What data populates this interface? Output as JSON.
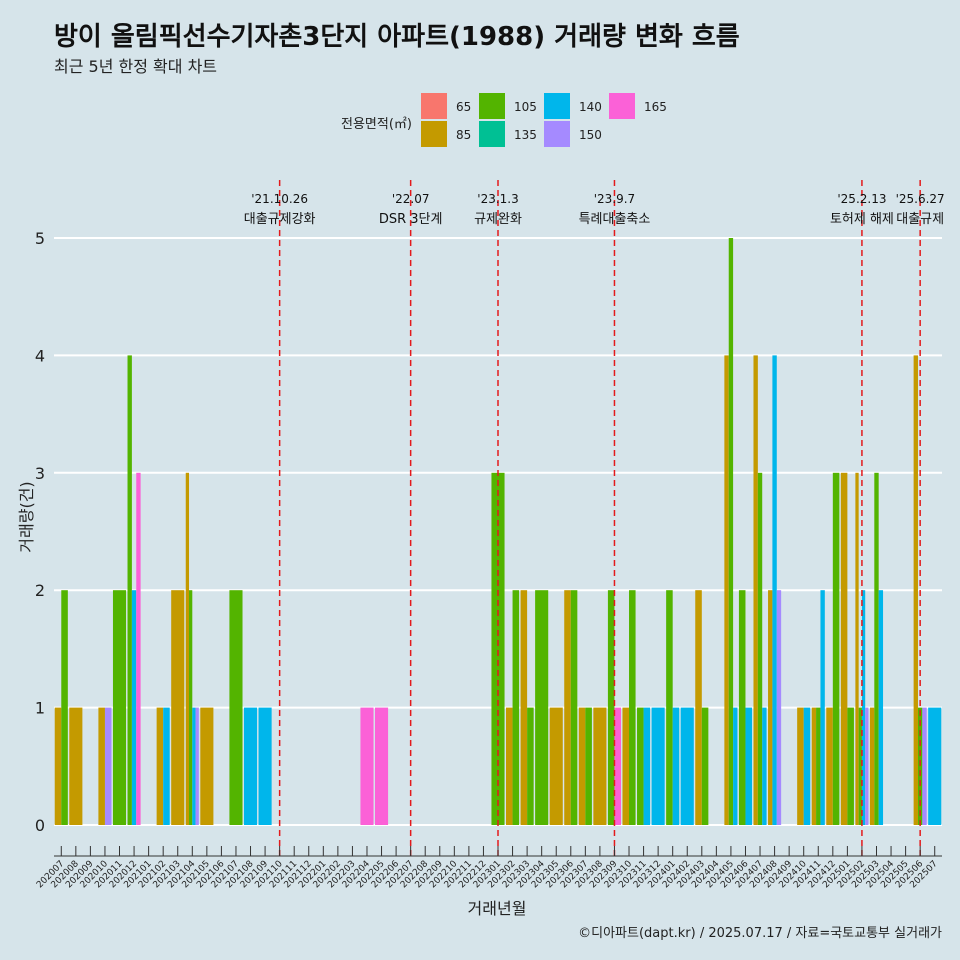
{
  "title": "방이 올림픽선수기자촌3단지 아파트(1988) 거래량 변화 흐름",
  "subtitle": "최근 5년 한정 확대 차트",
  "caption": "©디아파트(dapt.kr) / 2025.07.17 / 자료=국토교통부 실거래가",
  "chart_data": {
    "type": "bar",
    "xlabel": "거래년월",
    "ylabel": "거래량(건)",
    "ylim": [
      0,
      5
    ],
    "yticks": [
      0,
      1,
      2,
      3,
      4,
      5
    ],
    "grid": true,
    "legend": {
      "title": "전용면적(㎡)",
      "position": "top",
      "items": [
        {
          "label": "65",
          "color": "#f8766d"
        },
        {
          "label": "85",
          "color": "#c49a00"
        },
        {
          "label": "105",
          "color": "#53b400"
        },
        {
          "label": "135",
          "color": "#00c094"
        },
        {
          "label": "140",
          "color": "#00b6eb"
        },
        {
          "label": "150",
          "color": "#a58aff"
        },
        {
          "label": "165",
          "color": "#fb61d7"
        }
      ]
    },
    "categories": [
      "202007",
      "202008",
      "202009",
      "202010",
      "202011",
      "202012",
      "202101",
      "202102",
      "202103",
      "202104",
      "202105",
      "202106",
      "202107",
      "202108",
      "202109",
      "202110",
      "202111",
      "202112",
      "202201",
      "202202",
      "202203",
      "202204",
      "202205",
      "202206",
      "202207",
      "202208",
      "202209",
      "202210",
      "202211",
      "202212",
      "202301",
      "202302",
      "202303",
      "202304",
      "202305",
      "202306",
      "202307",
      "202308",
      "202309",
      "202310",
      "202311",
      "202312",
      "202401",
      "202402",
      "202403",
      "202404",
      "202405",
      "202406",
      "202407",
      "202408",
      "202409",
      "202410",
      "202411",
      "202412",
      "202501",
      "202502",
      "202503",
      "202504",
      "202505",
      "202506",
      "202507"
    ],
    "series": [
      {
        "name": "85",
        "values": [
          1,
          1,
          0,
          1,
          0,
          0,
          0,
          1,
          2,
          3,
          1,
          0,
          0,
          0,
          0,
          0,
          0,
          0,
          0,
          0,
          0,
          0,
          0,
          0,
          0,
          0,
          0,
          0,
          0,
          0,
          0,
          1,
          2,
          0,
          1,
          2,
          1,
          1,
          0,
          1,
          0,
          0,
          0,
          0,
          2,
          0,
          4,
          0,
          4,
          2,
          0,
          1,
          1,
          1,
          3,
          3,
          1,
          0,
          0,
          4,
          0
        ]
      },
      {
        "name": "105",
        "values": [
          2,
          0,
          0,
          0,
          2,
          4,
          0,
          0,
          0,
          2,
          0,
          0,
          2,
          0,
          0,
          0,
          0,
          0,
          0,
          0,
          0,
          0,
          0,
          0,
          0,
          0,
          0,
          0,
          0,
          0,
          3,
          2,
          1,
          2,
          0,
          2,
          1,
          0,
          2,
          2,
          1,
          0,
          2,
          0,
          1,
          0,
          5,
          2,
          3,
          0,
          0,
          0,
          1,
          3,
          1,
          1,
          3,
          0,
          0,
          1,
          0
        ]
      },
      {
        "name": "140",
        "values": [
          0,
          0,
          0,
          0,
          0,
          2,
          0,
          1,
          0,
          1,
          0,
          0,
          0,
          1,
          1,
          0,
          0,
          0,
          0,
          0,
          0,
          0,
          0,
          0,
          0,
          0,
          0,
          0,
          0,
          0,
          0,
          0,
          0,
          0,
          0,
          0,
          0,
          0,
          0,
          0,
          1,
          1,
          1,
          1,
          0,
          0,
          1,
          1,
          1,
          4,
          0,
          1,
          2,
          0,
          0,
          2,
          2,
          0,
          0,
          0,
          1
        ]
      },
      {
        "name": "150",
        "values": [
          0,
          0,
          0,
          1,
          0,
          0,
          0,
          0,
          0,
          1,
          0,
          0,
          0,
          0,
          0,
          0,
          0,
          0,
          0,
          0,
          0,
          0,
          0,
          0,
          0,
          0,
          0,
          0,
          0,
          0,
          0,
          0,
          0,
          0,
          0,
          0,
          0,
          0,
          0,
          0,
          0,
          0,
          0,
          0,
          0,
          0,
          0,
          0,
          0,
          2,
          0,
          0,
          0,
          0,
          0,
          1,
          0,
          0,
          0,
          1,
          0
        ]
      },
      {
        "name": "165",
        "values": [
          0,
          0,
          0,
          0,
          0,
          3,
          0,
          0,
          0,
          0,
          0,
          0,
          0,
          0,
          0,
          0,
          0,
          0,
          0,
          0,
          0,
          1,
          1,
          0,
          0,
          0,
          0,
          0,
          0,
          0,
          0,
          0,
          0,
          0,
          0,
          0,
          0,
          0,
          1,
          0,
          0,
          0,
          0,
          0,
          0,
          0,
          0,
          0,
          0,
          0,
          0,
          0,
          0,
          0,
          0,
          0,
          0,
          0,
          0,
          0,
          0
        ]
      }
    ],
    "events": [
      {
        "month": "202110",
        "date": "'21.10.26",
        "label": "대출규제강화"
      },
      {
        "month": "202207",
        "date": "'22.07",
        "label": "DSR 3단계"
      },
      {
        "month": "202301",
        "date": "'23.1.3",
        "label": "규제완화"
      },
      {
        "month": "202309",
        "date": "'23.9.7",
        "label": "특례대출축소"
      },
      {
        "month": "202502",
        "date": "'25.2.13",
        "label": "토허제 해제"
      },
      {
        "month": "202506",
        "date": "'25.6.27",
        "label": "대출규제"
      }
    ]
  }
}
